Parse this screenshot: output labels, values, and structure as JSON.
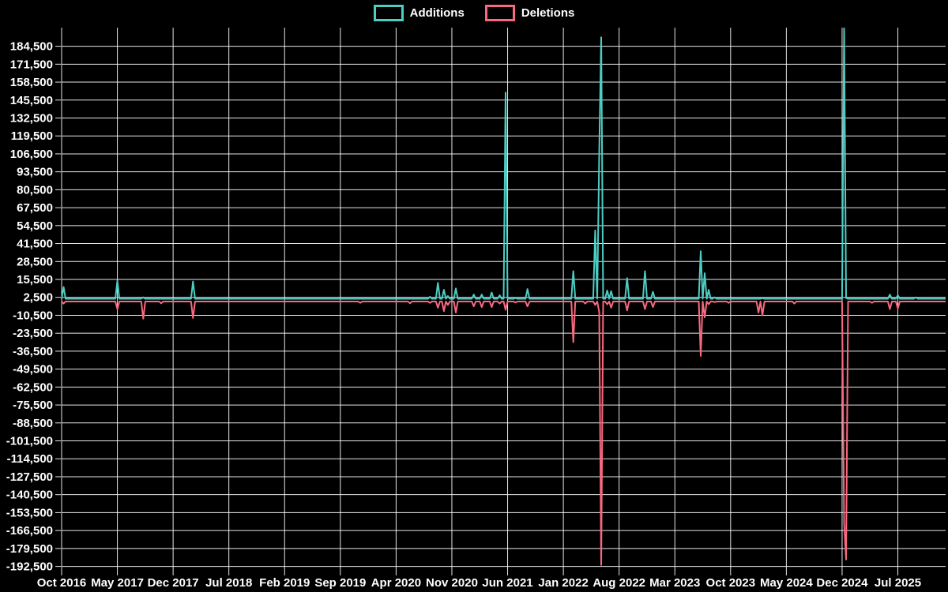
{
  "chart_data": {
    "type": "line",
    "title": "",
    "legend_position": "top",
    "grid": true,
    "background": "#000000",
    "text_color": "#ffffff",
    "grid_color": "#ffffff",
    "legend": [
      {
        "name": "Additions",
        "color": "#4ECDC4"
      },
      {
        "name": "Deletions",
        "color": "#F8697F"
      }
    ],
    "x_tick_labels": [
      "Oct 2016",
      "May 2017",
      "Dec 2017",
      "Jul 2018",
      "Feb 2019",
      "Sep 2019",
      "Apr 2020",
      "Nov 2020",
      "Jun 2021",
      "Jan 2022",
      "Aug 2022",
      "Mar 2023",
      "Oct 2023",
      "May 2024",
      "Dec 2024",
      "Jul 2025"
    ],
    "months_per_x_tick": 7,
    "x_months_total": 111,
    "y_ticks": [
      184500,
      171500,
      158500,
      145500,
      132500,
      119500,
      106500,
      93500,
      80500,
      67500,
      54500,
      41500,
      28500,
      15500,
      2500,
      -10500,
      -23500,
      -36500,
      -49500,
      -62500,
      -75500,
      -88500,
      -101500,
      -114500,
      -127500,
      -140500,
      -153500,
      -166500,
      -179500,
      -192500
    ],
    "ylim": [
      -195600,
      198000
    ],
    "baseline": {
      "additions": 1500,
      "deletions": -500
    },
    "series": [
      {
        "name": "Additions",
        "color": "#4ECDC4"
      },
      {
        "name": "Deletions",
        "color": "#F8697F"
      }
    ],
    "points_format": [
      "t_months_from_Oct_2016",
      "additions",
      "deletions"
    ],
    "points": [
      [
        0.2,
        10000,
        -2000
      ],
      [
        6.9,
        14500,
        -6000
      ],
      [
        10.3,
        2500,
        -13000
      ],
      [
        12.6,
        null,
        -1800
      ],
      [
        16.6,
        14000,
        -12500
      ],
      [
        37.4,
        null,
        -1500
      ],
      [
        43.8,
        null,
        -1800
      ],
      [
        46.3,
        3000,
        -1500
      ],
      [
        47.3,
        13000,
        -5000
      ],
      [
        47.9,
        8000,
        -7500
      ],
      [
        48.6,
        3500,
        -3000
      ],
      [
        49.5,
        9000,
        -8500
      ],
      [
        51.8,
        4500,
        -4000
      ],
      [
        52.8,
        4500,
        -4500
      ],
      [
        53.9,
        6000,
        -4500
      ],
      [
        54.9,
        4000,
        -2000
      ],
      [
        55.8,
        151000,
        -6500
      ],
      [
        56.9,
        2000,
        -1200
      ],
      [
        58.5,
        8500,
        -4000
      ],
      [
        64.2,
        21500,
        -30000
      ],
      [
        65.7,
        null,
        -2000
      ],
      [
        67.0,
        51000,
        -3000
      ],
      [
        67.5,
        106000,
        -8000
      ],
      [
        67.75,
        191000,
        -191500
      ],
      [
        68.6,
        7500,
        -2500
      ],
      [
        69.0,
        7000,
        -5000
      ],
      [
        70.9,
        16500,
        -7000
      ],
      [
        73.2,
        21500,
        -6000
      ],
      [
        74.3,
        6500,
        -4500
      ],
      [
        80.3,
        36000,
        -40000
      ],
      [
        80.7,
        20000,
        -12000
      ],
      [
        81.3,
        8000,
        -2500
      ],
      [
        82.1,
        2500,
        -1000
      ],
      [
        83.8,
        1500,
        -1500
      ],
      [
        87.6,
        null,
        -8500
      ],
      [
        88.1,
        2000,
        -10500
      ],
      [
        92.1,
        null,
        -2000
      ],
      [
        98.25,
        197500,
        -161000
      ],
      [
        98.5,
        2000,
        -187500
      ],
      [
        101.8,
        null,
        -1500
      ],
      [
        104.1,
        4500,
        -6000
      ],
      [
        104.9,
        4000,
        -5500
      ],
      [
        107.3,
        2500,
        null
      ]
    ]
  }
}
